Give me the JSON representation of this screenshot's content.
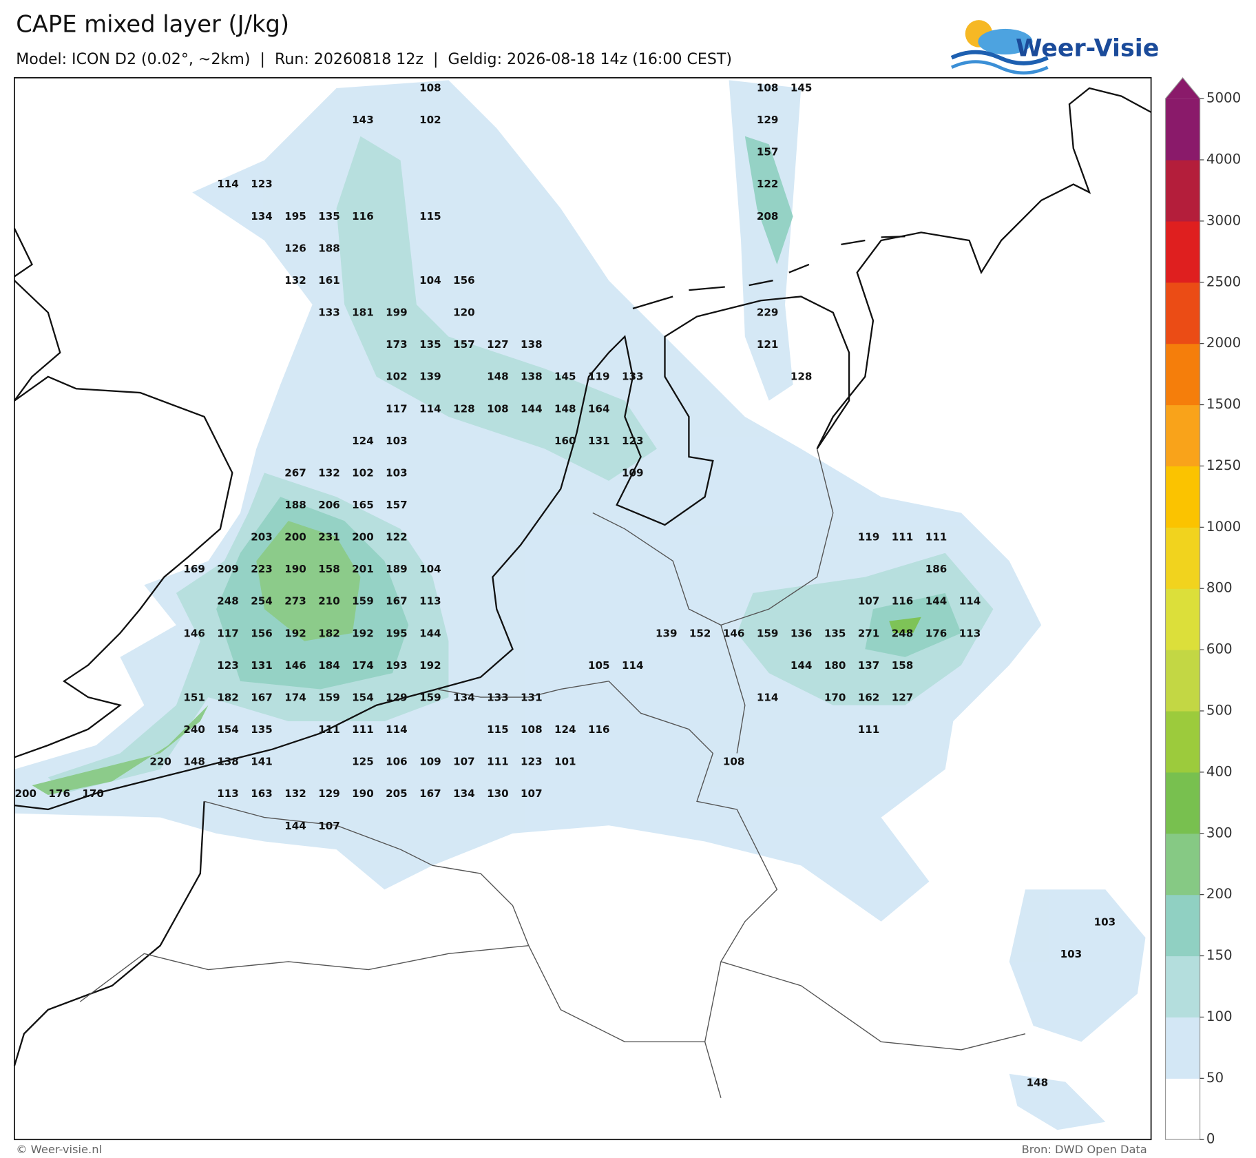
{
  "header": {
    "title": "CAPE mixed layer (J/kg)",
    "subtitle": "Model: ICON D2 (0.02°, ~2km)  |  Run: 20260818 12z  |  Geldig: 2026-08-18 14z (16:00 CEST)",
    "logo": "Weer-Visie"
  },
  "map": {
    "labels": [
      [
        null,
        null,
        null,
        null,
        null,
        null,
        null,
        null,
        null,
        null,
        null,
        null,
        108,
        null,
        null,
        null,
        null,
        null,
        null,
        null,
        null,
        null,
        108,
        145
      ],
      [
        null,
        null,
        null,
        null,
        null,
        null,
        null,
        null,
        null,
        null,
        143,
        null,
        102,
        null,
        null,
        null,
        null,
        null,
        null,
        null,
        null,
        null,
        129
      ],
      [
        null,
        null,
        null,
        null,
        null,
        null,
        null,
        null,
        null,
        null,
        null,
        null,
        null,
        null,
        null,
        null,
        null,
        null,
        null,
        null,
        null,
        null,
        157
      ],
      [
        null,
        null,
        null,
        null,
        null,
        null,
        114,
        123,
        null,
        null,
        null,
        null,
        null,
        null,
        null,
        null,
        null,
        null,
        null,
        null,
        null,
        null,
        122
      ],
      [
        null,
        null,
        null,
        null,
        null,
        null,
        null,
        134,
        195,
        135,
        116,
        null,
        115,
        null,
        null,
        null,
        null,
        null,
        null,
        null,
        null,
        null,
        208
      ],
      [
        null,
        null,
        null,
        null,
        null,
        null,
        null,
        null,
        126,
        188
      ],
      [
        null,
        null,
        null,
        null,
        null,
        null,
        null,
        null,
        132,
        161,
        null,
        null,
        104,
        156
      ],
      [
        null,
        null,
        null,
        null,
        null,
        null,
        null,
        null,
        null,
        133,
        181,
        199,
        null,
        120,
        null,
        null,
        null,
        null,
        null,
        null,
        null,
        null,
        229
      ],
      [
        null,
        null,
        null,
        null,
        null,
        null,
        null,
        null,
        null,
        null,
        null,
        173,
        135,
        157,
        127,
        138,
        null,
        null,
        null,
        null,
        null,
        null,
        121
      ],
      [
        null,
        null,
        null,
        null,
        null,
        null,
        null,
        null,
        null,
        null,
        null,
        102,
        139,
        null,
        148,
        138,
        145,
        119,
        133,
        null,
        null,
        null,
        null,
        128
      ],
      [
        null,
        null,
        null,
        null,
        null,
        null,
        null,
        null,
        null,
        null,
        null,
        117,
        114,
        128,
        108,
        144,
        148,
        164
      ],
      [
        null,
        null,
        null,
        null,
        null,
        null,
        null,
        null,
        null,
        null,
        124,
        103,
        null,
        null,
        null,
        null,
        160,
        131,
        123
      ],
      [
        null,
        null,
        null,
        null,
        null,
        null,
        null,
        null,
        267,
        132,
        102,
        103,
        null,
        null,
        null,
        null,
        null,
        null,
        109
      ],
      [
        null,
        null,
        null,
        null,
        null,
        null,
        null,
        null,
        188,
        206,
        165,
        157
      ],
      [
        null,
        null,
        null,
        null,
        null,
        null,
        null,
        203,
        200,
        231,
        200,
        122,
        null,
        null,
        null,
        null,
        null,
        null,
        null,
        null,
        null,
        null,
        null,
        null,
        null,
        119,
        111,
        111
      ],
      [
        null,
        null,
        null,
        null,
        null,
        169,
        209,
        223,
        190,
        158,
        201,
        189,
        104,
        null,
        null,
        null,
        null,
        null,
        null,
        null,
        null,
        null,
        null,
        null,
        null,
        null,
        null,
        186
      ],
      [
        null,
        null,
        null,
        null,
        null,
        null,
        248,
        254,
        273,
        210,
        159,
        167,
        113,
        null,
        null,
        null,
        null,
        null,
        null,
        null,
        null,
        null,
        null,
        null,
        null,
        107,
        116,
        144,
        114
      ],
      [
        null,
        null,
        null,
        null,
        null,
        146,
        117,
        156,
        192,
        182,
        192,
        195,
        144,
        null,
        null,
        null,
        null,
        null,
        null,
        139,
        152,
        146,
        159,
        136,
        135,
        271,
        248,
        176,
        113
      ],
      [
        null,
        null,
        null,
        null,
        null,
        null,
        123,
        131,
        146,
        184,
        174,
        193,
        192,
        null,
        null,
        null,
        null,
        105,
        114,
        null,
        null,
        null,
        null,
        144,
        180,
        137,
        158
      ],
      [
        null,
        null,
        null,
        null,
        null,
        151,
        182,
        167,
        174,
        159,
        154,
        129,
        159,
        134,
        133,
        131,
        null,
        null,
        null,
        null,
        null,
        null,
        114,
        null,
        170,
        162,
        127
      ],
      [
        null,
        null,
        null,
        null,
        null,
        240,
        154,
        135,
        null,
        111,
        111,
        114,
        null,
        null,
        115,
        108,
        124,
        116,
        null,
        null,
        null,
        null,
        null,
        null,
        null,
        111
      ],
      [
        null,
        null,
        null,
        null,
        220,
        148,
        138,
        141,
        null,
        null,
        125,
        106,
        109,
        107,
        111,
        123,
        101,
        null,
        null,
        null,
        null,
        108
      ],
      [
        200,
        176,
        170,
        null,
        null,
        null,
        113,
        163,
        132,
        129,
        190,
        205,
        167,
        134,
        130,
        107
      ],
      [
        null,
        null,
        null,
        null,
        null,
        null,
        null,
        null,
        144,
        107
      ],
      [],
      [],
      [
        null,
        null,
        null,
        null,
        null,
        null,
        null,
        null,
        null,
        null,
        null,
        null,
        null,
        null,
        null,
        null,
        null,
        null,
        null,
        null,
        null,
        null,
        null,
        null,
        null,
        null,
        null,
        null,
        null,
        null,
        null,
        null,
        103
      ],
      [
        null,
        null,
        null,
        null,
        null,
        null,
        null,
        null,
        null,
        null,
        null,
        null,
        null,
        null,
        null,
        null,
        null,
        null,
        null,
        null,
        null,
        null,
        null,
        null,
        null,
        null,
        null,
        null,
        null,
        null,
        null,
        103
      ],
      [],
      [],
      [],
      [
        null,
        null,
        null,
        null,
        null,
        null,
        null,
        null,
        null,
        null,
        null,
        null,
        null,
        null,
        null,
        null,
        null,
        null,
        null,
        null,
        null,
        null,
        null,
        null,
        null,
        null,
        null,
        null,
        null,
        null,
        148
      ]
    ]
  },
  "colorbar": {
    "levels": [
      0,
      50,
      100,
      150,
      200,
      300,
      400,
      500,
      600,
      800,
      1000,
      1250,
      1500,
      2000,
      2500,
      3000,
      4000,
      5000
    ],
    "colors": [
      "#ffffff",
      "#d3e7f5",
      "#b4dedd",
      "#90d0c2",
      "#86c984",
      "#78c04f",
      "#9ccb3c",
      "#c3d744",
      "#dcdf3a",
      "#f1d31e",
      "#fbc300",
      "#f9a31a",
      "#f57e0b",
      "#eb4c15",
      "#df1f1f",
      "#b41e3b",
      "#8a1a6a"
    ],
    "extend_color": "#8a1a6a"
  },
  "footer": {
    "copyright": "© Weer-visie.nl",
    "source": "Bron: DWD Open Data"
  }
}
